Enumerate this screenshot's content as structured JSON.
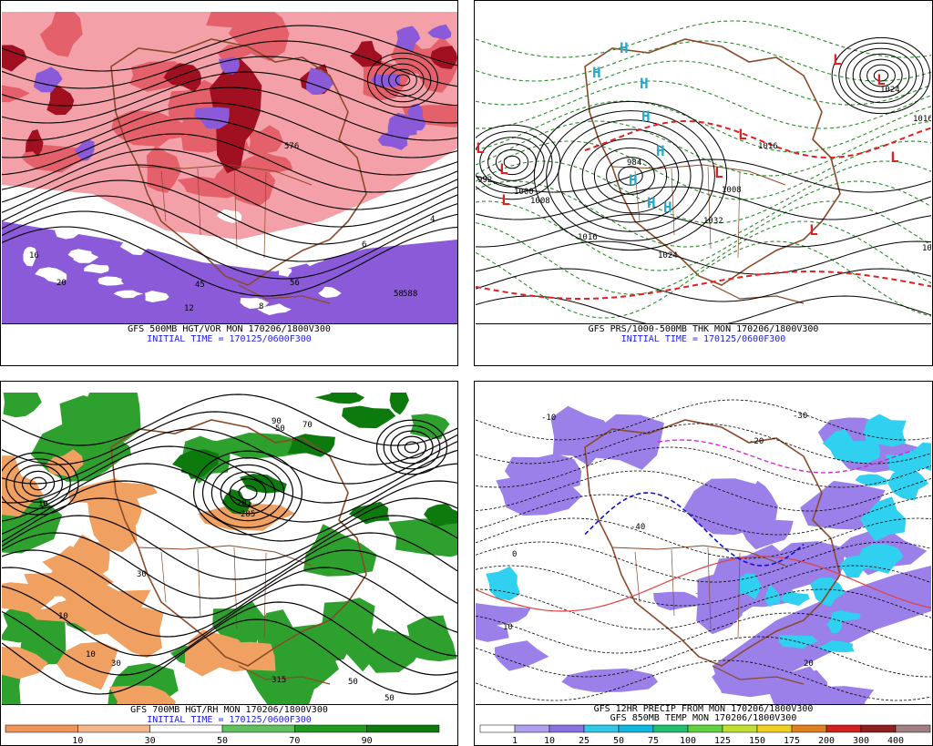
{
  "panels": [
    {
      "id": "vort",
      "caption_line1": "GFS 500MB HGT/VOR MON 170206/1800V300",
      "caption_line2": "INITIAL TIME = 170125/0600F300",
      "contour_labels": [
        "4",
        "6",
        "8",
        "45",
        "56",
        "58",
        "12",
        "16",
        "20",
        "588",
        "576"
      ]
    },
    {
      "id": "pressure",
      "caption_line1": "GFS PRS/1000-500MB THK MON 170206/1800V300",
      "caption_line2": "INITIAL TIME = 170125/0600F300",
      "high_symbol": "H",
      "low_symbol": "L",
      "isobar_labels": [
        "992",
        "1000",
        "1008",
        "1016",
        "1024",
        "984",
        "1032",
        "1016",
        "1024",
        "1008",
        "1016",
        "1024"
      ]
    },
    {
      "id": "rh",
      "caption_line1": "GFS 700MB HGT/RH MON 170206/1800V300",
      "caption_line2": "INITIAL TIME = 170125/0600F300",
      "field_labels": [
        "10",
        "30",
        "50",
        "70",
        "90",
        "315",
        "281",
        "285",
        "10",
        "10",
        "30",
        "50",
        "50"
      ],
      "colorbar": {
        "labels": [
          "10",
          "30",
          "50",
          "70",
          "90"
        ],
        "colors": [
          "#f0955a",
          "#f5b78a",
          "#ffffff",
          "#60c060",
          "#1f9a1f",
          "#0c7a0c"
        ]
      }
    },
    {
      "id": "precip",
      "caption_line1": "GFS 12HR PRECIP FROM MON 170206/1800V300",
      "caption_line2": "GFS 850MB TEMP MON 170206/1800V300",
      "temp_labels": [
        "-10",
        "-20",
        "-30",
        "0",
        "10",
        "20",
        "-40"
      ],
      "colorbar": {
        "labels": [
          "1",
          "10",
          "25",
          "50",
          "75",
          "100",
          "125",
          "150",
          "175",
          "200",
          "300",
          "400"
        ],
        "colors": [
          "#ffffff",
          "#b0a0ee",
          "#8a70e0",
          "#30c8e8",
          "#10b8e0",
          "#20c070",
          "#60d040",
          "#c0e030",
          "#f0d020",
          "#e08020",
          "#d02020",
          "#902020",
          "#a08080"
        ]
      }
    }
  ],
  "colors": {
    "vort_red": "#e4606a",
    "vort_pink": "#f4a0a8",
    "vort_dark": "#a01020",
    "vort_purple": "#8a5ad8",
    "coast": "#8a4a2a",
    "contour": "#000000",
    "thick_green": "#2a8a2a",
    "thick_red": "#e02020",
    "high_cyan": "#29a8c8",
    "rh_green": "#2ea02e",
    "rh_orange": "#f0a060",
    "precip_purple": "#9a80e8",
    "precip_cyan": "#30d0f0"
  }
}
